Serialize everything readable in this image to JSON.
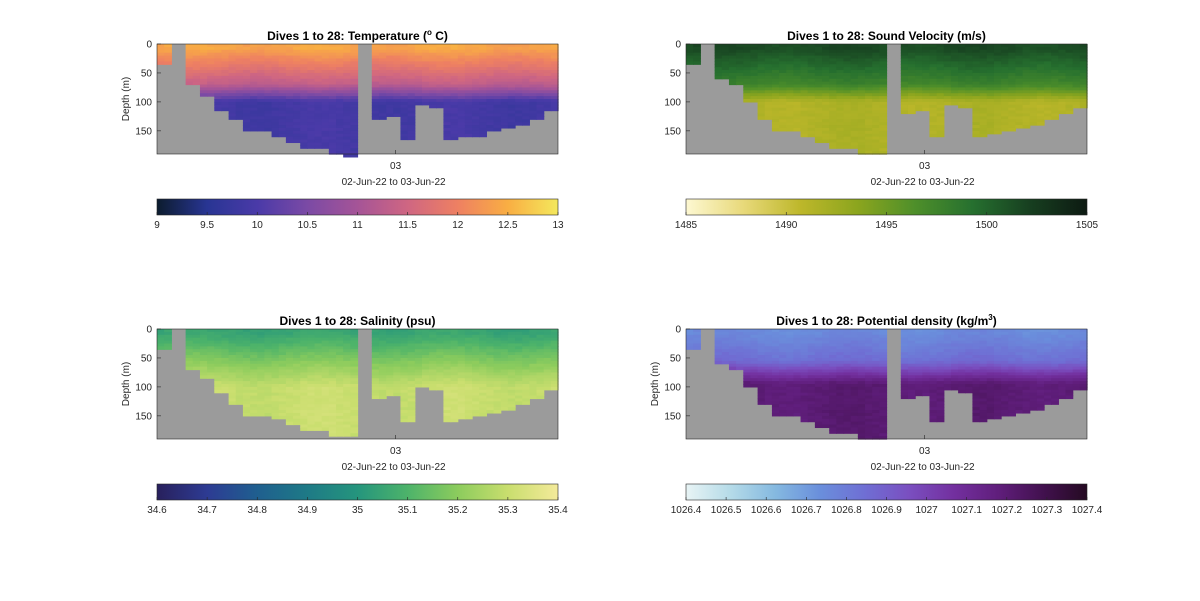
{
  "chart_data": [
    {
      "type": "heatmap",
      "title": "Dives 1 to 28: Temperature (",
      "title_sup": "o",
      "title_suffix": " C)",
      "ylabel": "Depth (m)",
      "xlabel": "02-Jun-22 to 03-Jun-22",
      "x_tick_labels": [
        "03"
      ],
      "y_tick_labels": [
        "0",
        "50",
        "100",
        "150"
      ],
      "y_ticks": [
        0,
        50,
        100,
        150
      ],
      "ylim": [
        0,
        190
      ],
      "y_reversed": true,
      "colorbar": {
        "min": 9,
        "max": 13,
        "ticks": [
          9,
          9.5,
          10,
          10.5,
          11,
          11.5,
          12,
          12.5,
          13
        ],
        "tick_labels": [
          "9",
          "9.5",
          "10",
          "10.5",
          "11",
          "11.5",
          "12",
          "12.5",
          "13"
        ],
        "colors": [
          "#0c1c2e",
          "#283593",
          "#4a3aa8",
          "#7b4aa5",
          "#a55497",
          "#cf6682",
          "#ee8062",
          "#f9ae43",
          "#f4e85c"
        ]
      },
      "field": "temperature",
      "surface_value": 12.4,
      "mixed_value": 11.3,
      "deep_value": 9.9,
      "mixed_depth": 70,
      "thermo_depth": 100,
      "max_depth_m": [
        35,
        0,
        70,
        90,
        115,
        130,
        150,
        150,
        160,
        170,
        180,
        180,
        190,
        195,
        0,
        130,
        125,
        165,
        105,
        110,
        165,
        160,
        160,
        150,
        145,
        140,
        130,
        115
      ]
    },
    {
      "type": "heatmap",
      "title": "Dives 1 to 28: Sound Velocity (m/s)",
      "ylabel": "",
      "xlabel": "02-Jun-22 to 03-Jun-22",
      "x_tick_labels": [
        "03"
      ],
      "y_tick_labels": [
        "0",
        "50",
        "100",
        "150"
      ],
      "y_ticks": [
        0,
        50,
        100,
        150
      ],
      "ylim": [
        0,
        190
      ],
      "y_reversed": true,
      "colorbar": {
        "min": 1485,
        "max": 1505,
        "ticks": [
          1485,
          1490,
          1495,
          1500,
          1505
        ],
        "tick_labels": [
          "1485",
          "1490",
          "1495",
          "1500",
          "1505"
        ],
        "colors": [
          "#fdf8d2",
          "#e8d97a",
          "#bdb72a",
          "#8ba51e",
          "#4e8f2a",
          "#26702f",
          "#173f20",
          "#0d1a12"
        ]
      },
      "field": "sound_velocity",
      "surface_value": 1501.5,
      "mixed_value": 1497.5,
      "deep_value": 1491.5,
      "mixed_depth": 70,
      "thermo_depth": 100,
      "max_depth_m": [
        35,
        0,
        60,
        70,
        100,
        130,
        150,
        150,
        160,
        170,
        180,
        180,
        190,
        190,
        0,
        120,
        115,
        160,
        105,
        110,
        160,
        155,
        150,
        145,
        140,
        130,
        120,
        110
      ]
    },
    {
      "type": "heatmap",
      "title": "Dives 1 to 28: Salinity (psu)",
      "ylabel": "Depth (m)",
      "xlabel": "02-Jun-22 to 03-Jun-22",
      "x_tick_labels": [
        "03"
      ],
      "y_tick_labels": [
        "0",
        "50",
        "100",
        "150"
      ],
      "y_ticks": [
        0,
        50,
        100,
        150
      ],
      "ylim": [
        0,
        190
      ],
      "y_reversed": true,
      "colorbar": {
        "min": 34.6,
        "max": 35.4,
        "ticks": [
          34.6,
          34.7,
          34.8,
          34.9,
          35,
          35.1,
          35.2,
          35.3,
          35.4
        ],
        "tick_labels": [
          "34.6",
          "34.7",
          "34.8",
          "34.9",
          "35",
          "35.1",
          "35.2",
          "35.3",
          "35.4"
        ],
        "colors": [
          "#28205c",
          "#2d3b93",
          "#1f5f8f",
          "#1e7a86",
          "#25957d",
          "#4db36a",
          "#8ccc5d",
          "#c9de6e",
          "#f4ea9a"
        ]
      },
      "field": "salinity",
      "surface_value": 35.05,
      "mixed_value": 35.2,
      "deep_value": 35.3,
      "mixed_depth": 60,
      "thermo_depth": 100,
      "max_depth_m": [
        35,
        0,
        70,
        85,
        110,
        130,
        150,
        150,
        155,
        165,
        175,
        175,
        185,
        185,
        0,
        120,
        115,
        160,
        100,
        105,
        160,
        155,
        150,
        145,
        140,
        130,
        120,
        105
      ]
    },
    {
      "type": "heatmap",
      "title": "Dives 1 to 28: Potential density (kg/m",
      "title_sup": "3",
      "title_suffix": ")",
      "ylabel": "Depth (m)",
      "xlabel": "02-Jun-22 to 03-Jun-22",
      "x_tick_labels": [
        "03"
      ],
      "y_tick_labels": [
        "0",
        "50",
        "100",
        "150"
      ],
      "y_ticks": [
        0,
        50,
        100,
        150
      ],
      "ylim": [
        0,
        190
      ],
      "y_reversed": true,
      "colorbar": {
        "min": 1026.4,
        "max": 1027.4,
        "ticks": [
          1026.4,
          1026.5,
          1026.6,
          1026.7,
          1026.8,
          1026.9,
          1027,
          1027.1,
          1027.2,
          1027.3,
          1027.4
        ],
        "tick_labels": [
          "1026.4",
          "1026.5",
          "1026.6",
          "1026.7",
          "1026.8",
          "1026.9",
          "1027",
          "1027.1",
          "1027.2",
          "1027.3",
          "1027.4"
        ],
        "colors": [
          "#e8f4f5",
          "#b5dbe8",
          "#85b9e0",
          "#6a8fdc",
          "#6f6fd4",
          "#7a4fc0",
          "#73309f",
          "#601e7c",
          "#42114f",
          "#250a22"
        ]
      },
      "field": "density",
      "surface_value": 1026.75,
      "mixed_value": 1026.85,
      "deep_value": 1027.2,
      "mixed_depth": 55,
      "thermo_depth": 95,
      "max_depth_m": [
        35,
        0,
        60,
        70,
        100,
        130,
        150,
        150,
        160,
        170,
        180,
        180,
        190,
        190,
        0,
        120,
        115,
        160,
        105,
        110,
        160,
        155,
        150,
        145,
        140,
        130,
        120,
        105
      ]
    }
  ]
}
